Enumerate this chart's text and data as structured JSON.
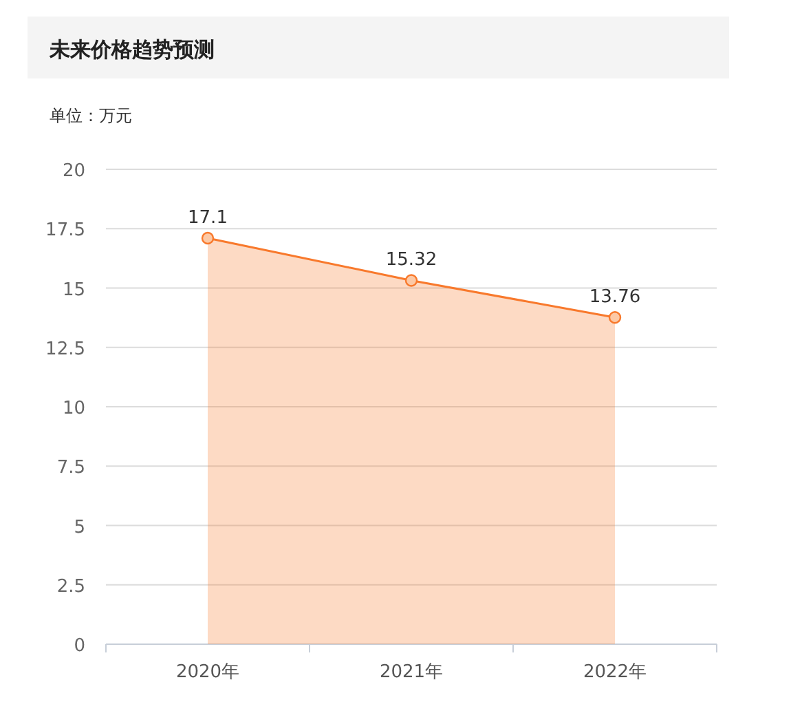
{
  "chart_data": {
    "type": "area",
    "title": "未来价格趋势预测",
    "ylabel": "单位：万元",
    "categories": [
      "2020年",
      "2021年",
      "2022年"
    ],
    "series": [
      {
        "color": "#f8792c",
        "values": [
          17.1,
          15.32,
          13.76
        ]
      }
    ],
    "ylim": [
      0,
      20
    ],
    "yticks": [
      0,
      2.5,
      5,
      7.5,
      10,
      12.5,
      15,
      17.5,
      20
    ],
    "grid": "y",
    "marker": "circle",
    "line_style": "solid",
    "data_labels": true
  }
}
